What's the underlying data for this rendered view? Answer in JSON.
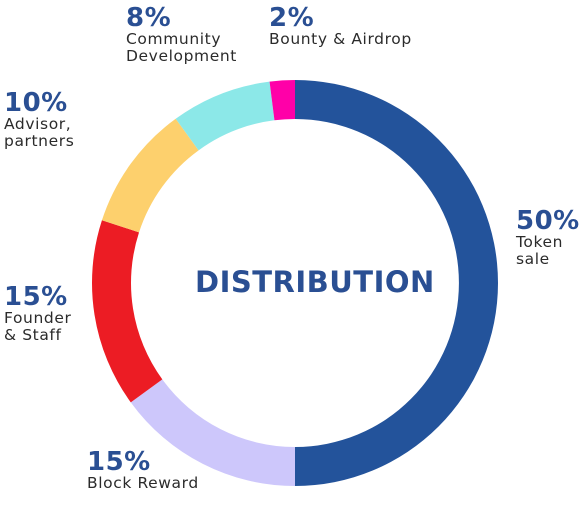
{
  "chart_data": {
    "type": "pie",
    "donut": true,
    "title": "DISTRIBUTION",
    "slices": [
      {
        "label": "Token sale",
        "label_lines": [
          "Token",
          "sale"
        ],
        "value": 50,
        "pct_text": "50%",
        "color": "#23539b"
      },
      {
        "label": "Block Reward",
        "label_lines": [
          "Block Reward"
        ],
        "value": 15,
        "pct_text": "15%",
        "color": "#cdc7fb"
      },
      {
        "label": "Founder & Staff",
        "label_lines": [
          "Founder",
          "& Staff"
        ],
        "value": 15,
        "pct_text": "15%",
        "color": "#ec1c24"
      },
      {
        "label": "Advisor, partners",
        "label_lines": [
          "Advisor,",
          "partners"
        ],
        "value": 10,
        "pct_text": "10%",
        "color": "#fdd06d"
      },
      {
        "label": "Community Development",
        "label_lines": [
          "Community",
          "Development"
        ],
        "value": 8,
        "pct_text": "8%",
        "color": "#8ce8e8"
      },
      {
        "label": "Bounty & Airdrop",
        "label_lines": [
          "Bounty & Airdrop"
        ],
        "value": 2,
        "pct_text": "2%",
        "color": "#ff00a8"
      }
    ]
  }
}
